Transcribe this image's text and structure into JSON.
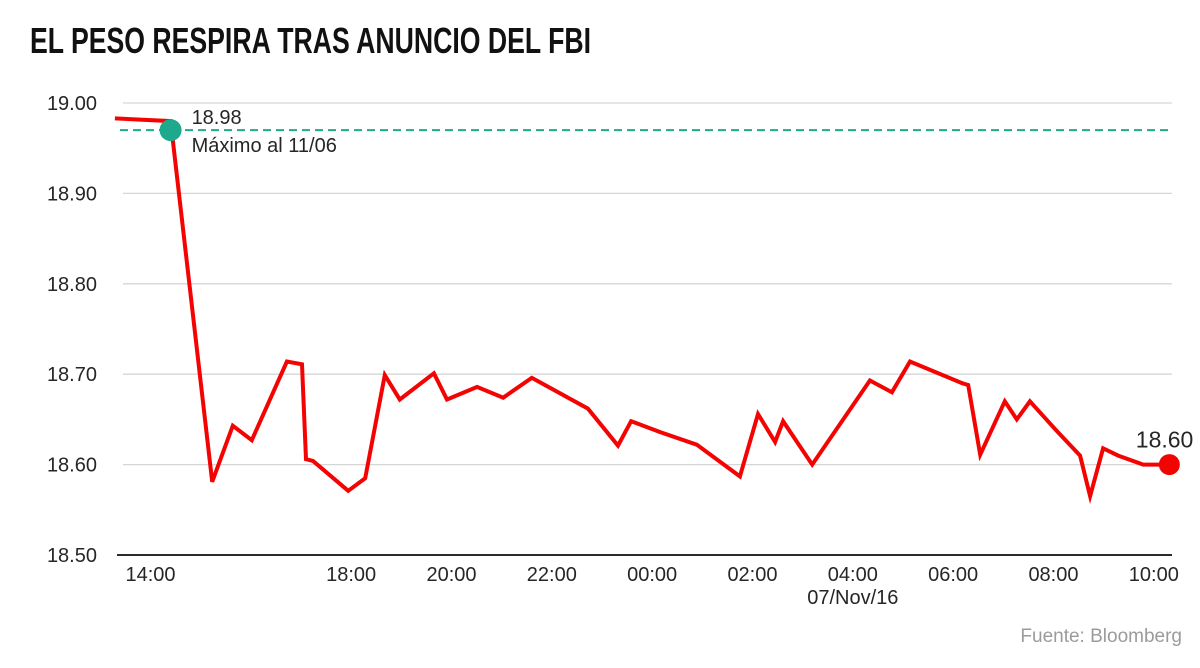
{
  "header": {
    "title": "EL PESO RESPIRA TRAS ANUNCIO DEL FBI"
  },
  "footer": {
    "source": "Fuente: Bloomberg"
  },
  "chart_data": {
    "type": "line",
    "title": "EL PESO RESPIRA TRAS ANUNCIO DEL FBI",
    "grid": true,
    "legend": "none",
    "colors": {
      "line": "#f40303",
      "max_accent": "#1fa98c",
      "grid": "#d6d6d6",
      "axis": "#2b2b2b",
      "tick_text": "#262626",
      "annotation_text": "#262626"
    },
    "y_axis": {
      "min": 18.5,
      "max": 19.0,
      "tick_step": 0.1,
      "ticks": [
        {
          "v": 19.0,
          "label": "19.00"
        },
        {
          "v": 18.9,
          "label": "18.90"
        },
        {
          "v": 18.8,
          "label": "18.80"
        },
        {
          "v": 18.7,
          "label": "18.70"
        },
        {
          "v": 18.6,
          "label": "18.60"
        },
        {
          "v": 18.5,
          "label": "18.50"
        }
      ]
    },
    "x_axis": {
      "t_unit": "hours_after_14:00",
      "range_t": [
        -0.75,
        20.45
      ],
      "ticks": [
        {
          "t": 0,
          "label": "14:00"
        },
        {
          "t": 4,
          "label": "18:00"
        },
        {
          "t": 6,
          "label": "20:00"
        },
        {
          "t": 8,
          "label": "22:00"
        },
        {
          "t": 10,
          "label": "00:00"
        },
        {
          "t": 12,
          "label": "02:00"
        },
        {
          "t": 14,
          "label": "04:00",
          "sublabel": "07/Nov/16"
        },
        {
          "t": 16,
          "label": "06:00"
        },
        {
          "t": 18,
          "label": "08:00"
        },
        {
          "t": 20,
          "label": "10:00"
        }
      ]
    },
    "series": [
      {
        "points": [
          [
            -0.71,
            18.983
          ],
          [
            0.4,
            18.98
          ],
          [
            1.23,
            18.581
          ],
          [
            1.64,
            18.643
          ],
          [
            2.02,
            18.627
          ],
          [
            2.72,
            18.714
          ],
          [
            3.02,
            18.711
          ],
          [
            3.1,
            18.606
          ],
          [
            3.24,
            18.604
          ],
          [
            3.94,
            18.571
          ],
          [
            4.28,
            18.585
          ],
          [
            4.67,
            18.699
          ],
          [
            4.97,
            18.672
          ],
          [
            5.65,
            18.701
          ],
          [
            5.91,
            18.672
          ],
          [
            6.51,
            18.686
          ],
          [
            7.03,
            18.674
          ],
          [
            7.6,
            18.696
          ],
          [
            8.72,
            18.662
          ],
          [
            9.32,
            18.621
          ],
          [
            9.58,
            18.648
          ],
          [
            10.16,
            18.636
          ],
          [
            10.89,
            18.622
          ],
          [
            11.75,
            18.587
          ],
          [
            12.11,
            18.656
          ],
          [
            12.45,
            18.625
          ],
          [
            12.61,
            18.648
          ],
          [
            13.19,
            18.6
          ],
          [
            14.34,
            18.693
          ],
          [
            14.78,
            18.68
          ],
          [
            15.14,
            18.714
          ],
          [
            16.18,
            18.69
          ],
          [
            16.3,
            18.688
          ],
          [
            16.54,
            18.611
          ],
          [
            17.03,
            18.67
          ],
          [
            17.27,
            18.65
          ],
          [
            17.53,
            18.67
          ],
          [
            18.07,
            18.637
          ],
          [
            18.53,
            18.61
          ],
          [
            18.73,
            18.565
          ],
          [
            18.99,
            18.618
          ],
          [
            19.29,
            18.61
          ],
          [
            19.79,
            18.6
          ],
          [
            20.31,
            18.6
          ]
        ]
      }
    ],
    "max_annotation": {
      "value_label": "18.98",
      "text": "Máximo al 11/06",
      "line_value": 18.97,
      "marker_t": 0.4
    },
    "end_annotation": {
      "value_label": "18.60",
      "value": 18.6
    }
  }
}
